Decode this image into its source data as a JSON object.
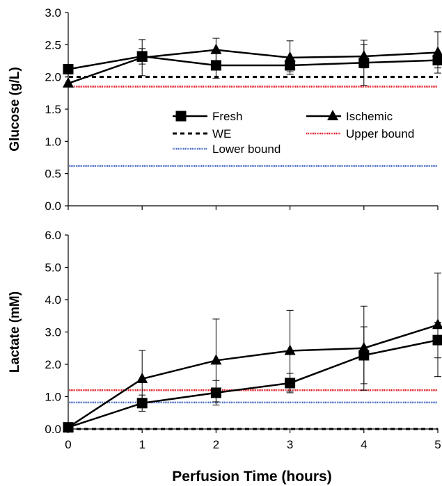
{
  "chart_data": [
    {
      "type": "line",
      "xlabel": "",
      "ylabel": "Glucose (g/L)",
      "x": [
        0,
        1,
        2,
        3,
        4,
        5
      ],
      "xlim": [
        0,
        5
      ],
      "ylim": [
        0,
        3
      ],
      "x_ticks": [
        "0",
        "1",
        "2",
        "3",
        "4",
        "5"
      ],
      "y_ticks": [
        "0.0",
        "0.5",
        "1.0",
        "1.5",
        "2.0",
        "2.5",
        "3.0"
      ],
      "x_tick_labels_shown": false,
      "grid": false,
      "legend": {
        "placement": "center",
        "entries": [
          "Fresh",
          "Ischemic",
          "WE",
          "Upper bound",
          "Lower bound"
        ]
      },
      "series": [
        {
          "name": "Fresh",
          "marker": "square",
          "color": "#000000",
          "values": [
            2.12,
            2.32,
            2.18,
            2.18,
            2.22,
            2.26
          ],
          "error": [
            0,
            0.12,
            0.2,
            0.1,
            0.35,
            0.12
          ]
        },
        {
          "name": "Ischemic",
          "marker": "triangle",
          "color": "#000000",
          "values": [
            1.9,
            2.3,
            2.42,
            2.3,
            2.32,
            2.38
          ],
          "error": [
            0,
            0.28,
            0.18,
            0.26,
            0.18,
            0.32
          ]
        },
        {
          "name": "WE",
          "style": "dashed",
          "color": "#000000",
          "constant": 2.0
        },
        {
          "name": "Upper bound",
          "style": "dotted",
          "color": "#e0202a",
          "constant": 1.85
        },
        {
          "name": "Lower bound",
          "style": "dotted",
          "color": "#4a6fc4",
          "constant": 0.62
        }
      ]
    },
    {
      "type": "line",
      "xlabel": "Perfusion Time (hours)",
      "ylabel": "Lactate (mM)",
      "x": [
        0,
        1,
        2,
        3,
        4,
        5
      ],
      "xlim": [
        0,
        5
      ],
      "ylim": [
        0,
        6
      ],
      "x_ticks": [
        "0",
        "1",
        "2",
        "3",
        "4",
        "5"
      ],
      "y_ticks": [
        "0.0",
        "1.0",
        "2.0",
        "3.0",
        "4.0",
        "5.0",
        "6.0"
      ],
      "x_tick_labels_shown": true,
      "grid": false,
      "series": [
        {
          "name": "Fresh",
          "marker": "square",
          "color": "#000000",
          "values": [
            0.05,
            0.8,
            1.12,
            1.42,
            2.28,
            2.75
          ],
          "error": [
            0,
            0.25,
            0.38,
            0.3,
            0.88,
            0.55
          ]
        },
        {
          "name": "Ischemic",
          "marker": "triangle",
          "color": "#000000",
          "values": [
            0.05,
            1.55,
            2.12,
            2.42,
            2.5,
            3.22
          ],
          "error": [
            0,
            0.88,
            1.28,
            1.25,
            1.3,
            1.6
          ]
        },
        {
          "name": "WE",
          "style": "dashed",
          "color": "#000000",
          "constant": 0.0
        },
        {
          "name": "Upper bound",
          "style": "dotted",
          "color": "#e0202a",
          "constant": 1.2
        },
        {
          "name": "Lower bound",
          "style": "dotted",
          "color": "#4a6fc4",
          "constant": 0.82
        }
      ]
    }
  ]
}
